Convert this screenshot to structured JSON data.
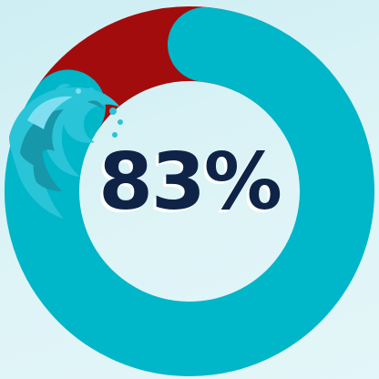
{
  "chart_data": {
    "type": "pie",
    "style": "donut",
    "values": [
      83,
      17
    ],
    "colors": [
      "#00b6c9",
      "#a30c0c"
    ],
    "label": "83%"
  },
  "text_color": "#0f2347",
  "wave_colors": [
    "#29c4d8",
    "#1797aa",
    "#7fdff0"
  ],
  "icon": "ocean-wave-icon"
}
